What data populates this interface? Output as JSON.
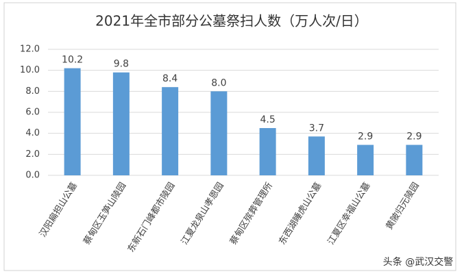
{
  "chart_data": {
    "type": "bar",
    "title": "2021年全市部分公墓祭扫人数（万人次/日）",
    "categories": [
      "汉阳扁担山公墓",
      "蔡甸区玉笋山陵园",
      "东新石门峰都市陵园",
      "江夏龙泉山孝恩园",
      "蔡甸区殡葬管理所",
      "东西湖睡虎山公墓",
      "江夏区幸福山公墓",
      "黄陂归元陵园"
    ],
    "values": [
      10.2,
      9.8,
      8.4,
      8.0,
      4.5,
      3.7,
      2.9,
      2.9
    ],
    "value_labels": [
      "10.2",
      "9.8",
      "8.4",
      "8.0",
      "4.5",
      "3.7",
      "2.9",
      "2.9"
    ],
    "color": "#5b9bd5",
    "ylim": [
      0,
      12
    ],
    "yticks": [
      {
        "value": 0,
        "label": "0.0"
      },
      {
        "value": 2,
        "label": "2.0"
      },
      {
        "value": 4,
        "label": "4.0"
      },
      {
        "value": 6,
        "label": "6.0"
      },
      {
        "value": 8,
        "label": "8.0"
      },
      {
        "value": 10,
        "label": "10.0"
      },
      {
        "value": 12,
        "label": "12.0"
      }
    ],
    "grid": true,
    "watermark": "头条 @武汉交警"
  }
}
